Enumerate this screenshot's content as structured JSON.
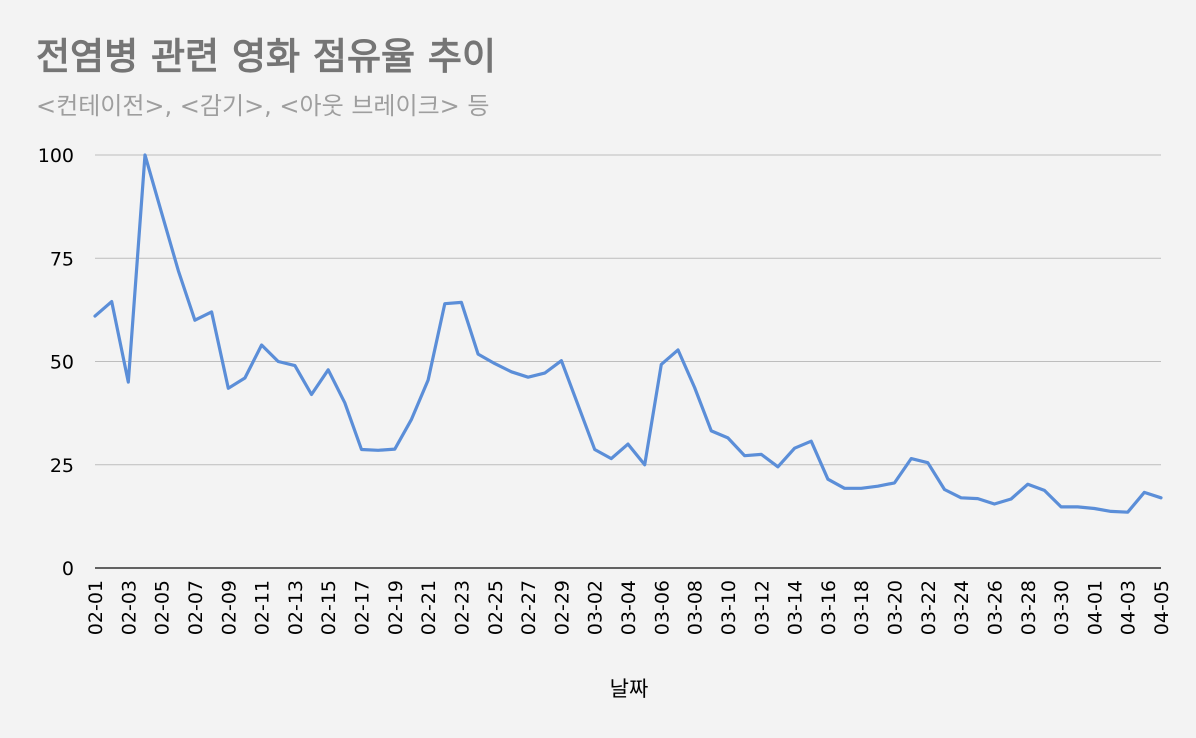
{
  "chart_data": {
    "type": "line",
    "title": "전염병 관련 영화 점유율 추이",
    "subtitle": "<컨테이전>, <감기>, <아웃 브레이크> 등",
    "xlabel": "날짜",
    "ylabel": "",
    "ylim": [
      0,
      100
    ],
    "yticks": [
      0,
      25,
      50,
      75,
      100
    ],
    "grid": true,
    "legend": "none",
    "line_color": "#5b8ed8",
    "x": [
      "02-01",
      "02-02",
      "02-03",
      "02-04",
      "02-05",
      "02-06",
      "02-07",
      "02-08",
      "02-09",
      "02-10",
      "02-11",
      "02-12",
      "02-13",
      "02-14",
      "02-15",
      "02-16",
      "02-17",
      "02-18",
      "02-19",
      "02-20",
      "02-21",
      "02-22",
      "02-23",
      "02-24",
      "02-25",
      "02-26",
      "02-27",
      "02-28",
      "02-29",
      "03-01",
      "03-02",
      "03-03",
      "03-04",
      "03-05",
      "03-06",
      "03-07",
      "03-08",
      "03-09",
      "03-10",
      "03-11",
      "03-12",
      "03-13",
      "03-14",
      "03-15",
      "03-16",
      "03-17",
      "03-18",
      "03-19",
      "03-20",
      "03-21",
      "03-22",
      "03-23",
      "03-24",
      "03-25",
      "03-26",
      "03-27",
      "03-28",
      "03-29",
      "03-30",
      "03-31",
      "04-01",
      "04-02",
      "04-03",
      "04-04",
      "04-05"
    ],
    "xticks": [
      "02-01",
      "02-03",
      "02-05",
      "02-07",
      "02-09",
      "02-11",
      "02-13",
      "02-15",
      "02-17",
      "02-19",
      "02-21",
      "02-23",
      "02-25",
      "02-27",
      "02-29",
      "03-02",
      "03-04",
      "03-06",
      "03-08",
      "03-10",
      "03-12",
      "03-14",
      "03-16",
      "03-18",
      "03-20",
      "03-22",
      "03-24",
      "03-26",
      "03-28",
      "03-30",
      "04-01",
      "04-03",
      "04-05"
    ],
    "values": [
      61,
      64.5,
      45,
      100,
      86,
      72,
      60,
      62,
      43.5,
      46,
      54,
      50,
      49,
      42,
      48,
      40,
      28.7,
      28.5,
      28.8,
      36,
      45.5,
      64,
      64.3,
      51.8,
      49.5,
      47.5,
      46.2,
      47.2,
      50.2,
      39.5,
      28.7,
      26.5,
      30,
      25,
      49.3,
      52.8,
      43.7,
      33.2,
      31.5,
      27.2,
      27.5,
      24.5,
      29,
      30.7,
      21.5,
      19.3,
      19.3,
      19.8,
      20.6,
      26.5,
      25.5,
      19,
      17,
      16.8,
      15.5,
      16.7,
      20.3,
      18.8,
      14.8,
      14.8,
      14.4,
      13.7,
      13.5,
      18.3,
      17
    ]
  }
}
